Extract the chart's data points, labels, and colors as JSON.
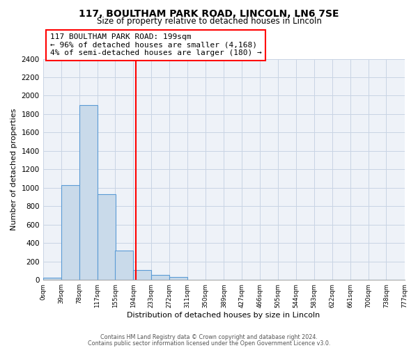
{
  "title": "117, BOULTHAM PARK ROAD, LINCOLN, LN6 7SE",
  "subtitle": "Size of property relative to detached houses in Lincoln",
  "xlabel": "Distribution of detached houses by size in Lincoln",
  "ylabel": "Number of detached properties",
  "bar_left_edges": [
    0,
    39,
    78,
    117,
    155,
    194,
    233,
    272,
    311,
    350,
    389,
    427,
    466,
    505,
    544,
    583,
    622,
    661,
    700,
    738
  ],
  "bar_heights": [
    25,
    1030,
    1900,
    930,
    320,
    110,
    55,
    30,
    0,
    0,
    0,
    0,
    0,
    0,
    0,
    0,
    0,
    0,
    0,
    0
  ],
  "bin_width": 39,
  "tick_labels": [
    "0sqm",
    "39sqm",
    "78sqm",
    "117sqm",
    "155sqm",
    "194sqm",
    "233sqm",
    "272sqm",
    "311sqm",
    "350sqm",
    "389sqm",
    "427sqm",
    "466sqm",
    "505sqm",
    "544sqm",
    "583sqm",
    "622sqm",
    "661sqm",
    "700sqm",
    "738sqm",
    "777sqm"
  ],
  "bar_color": "#c9daea",
  "bar_edge_color": "#5b9bd5",
  "vline_x": 199,
  "vline_color": "red",
  "annotation_title": "117 BOULTHAM PARK ROAD: 199sqm",
  "annotation_line1": "← 96% of detached houses are smaller (4,168)",
  "annotation_line2": "4% of semi-detached houses are larger (180) →",
  "ylim": [
    0,
    2400
  ],
  "yticks": [
    0,
    200,
    400,
    600,
    800,
    1000,
    1200,
    1400,
    1600,
    1800,
    2000,
    2200,
    2400
  ],
  "footer1": "Contains HM Land Registry data © Crown copyright and database right 2024.",
  "footer2": "Contains public sector information licensed under the Open Government Licence v3.0.",
  "bg_color": "#eef2f8",
  "grid_color": "#c8d4e4",
  "annot_border_color": "red"
}
